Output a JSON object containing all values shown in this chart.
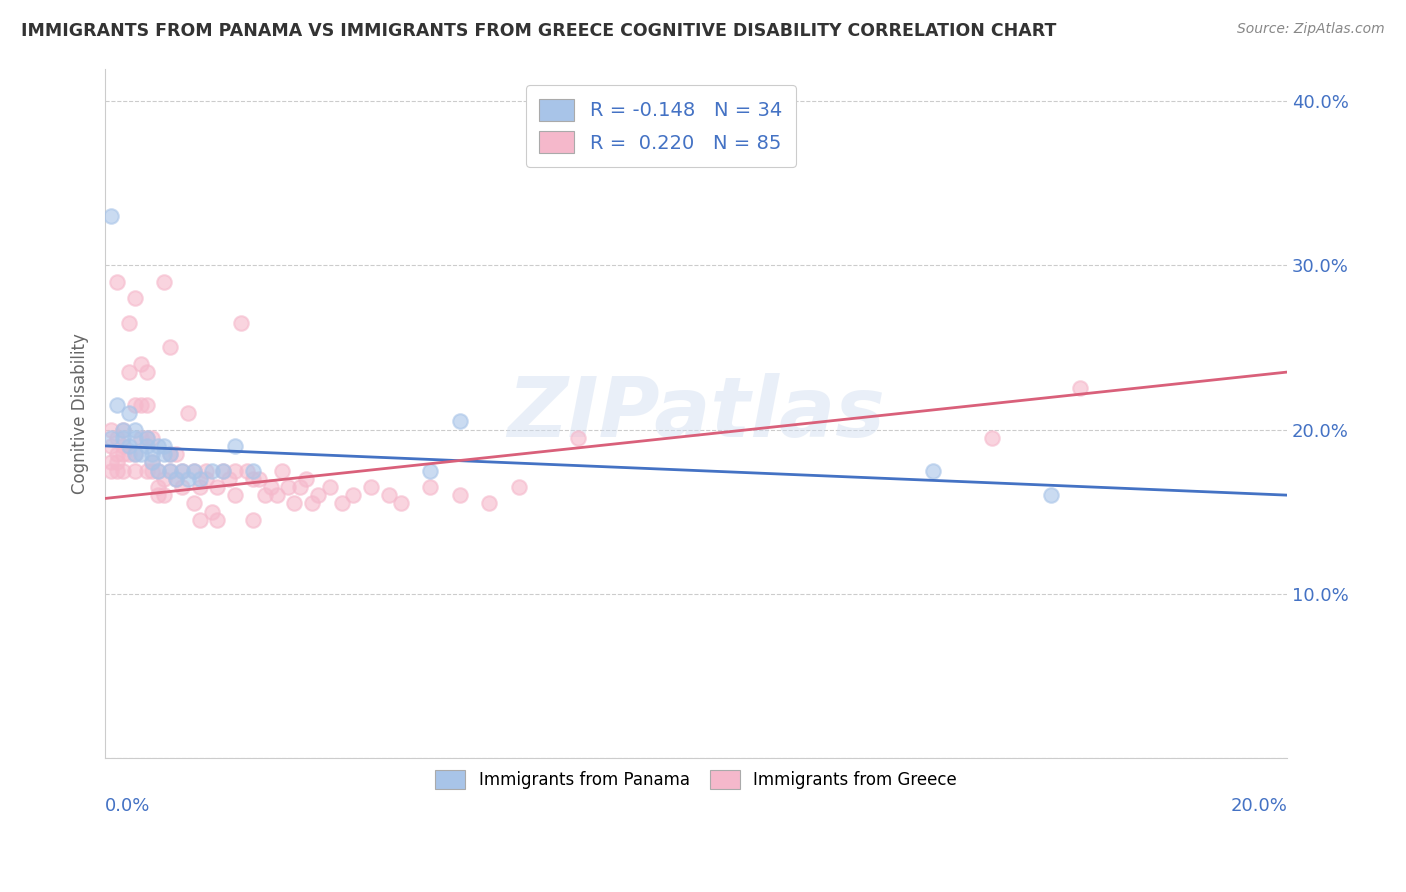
{
  "title": "IMMIGRANTS FROM PANAMA VS IMMIGRANTS FROM GREECE COGNITIVE DISABILITY CORRELATION CHART",
  "source": "Source: ZipAtlas.com",
  "ylabel": "Cognitive Disability",
  "yticks": [
    0.0,
    0.1,
    0.2,
    0.3,
    0.4
  ],
  "ytick_labels": [
    "",
    "10.0%",
    "20.0%",
    "30.0%",
    "40.0%"
  ],
  "xlim": [
    0.0,
    0.2
  ],
  "ylim": [
    0.0,
    0.42
  ],
  "watermark": "ZIPatlas",
  "legend_blue_r": "R = -0.148",
  "legend_blue_n": "N = 34",
  "legend_pink_r": "R =  0.220",
  "legend_pink_n": "N = 85",
  "blue_color": "#a8c4e8",
  "pink_color": "#f5b8cb",
  "blue_line_color": "#4472c4",
  "pink_line_color": "#d9607a",
  "panama_x": [
    0.001,
    0.001,
    0.002,
    0.003,
    0.003,
    0.004,
    0.004,
    0.005,
    0.005,
    0.005,
    0.006,
    0.007,
    0.007,
    0.008,
    0.008,
    0.009,
    0.009,
    0.01,
    0.01,
    0.011,
    0.011,
    0.012,
    0.013,
    0.014,
    0.015,
    0.016,
    0.018,
    0.02,
    0.022,
    0.025,
    0.055,
    0.06,
    0.14,
    0.16
  ],
  "panama_y": [
    0.33,
    0.195,
    0.215,
    0.2,
    0.195,
    0.19,
    0.21,
    0.195,
    0.185,
    0.2,
    0.185,
    0.19,
    0.195,
    0.185,
    0.18,
    0.19,
    0.175,
    0.185,
    0.19,
    0.175,
    0.185,
    0.17,
    0.175,
    0.17,
    0.175,
    0.17,
    0.175,
    0.175,
    0.19,
    0.175,
    0.175,
    0.205,
    0.175,
    0.16
  ],
  "greece_x": [
    0.001,
    0.001,
    0.001,
    0.001,
    0.002,
    0.002,
    0.002,
    0.002,
    0.002,
    0.003,
    0.003,
    0.003,
    0.003,
    0.004,
    0.004,
    0.004,
    0.005,
    0.005,
    0.005,
    0.005,
    0.006,
    0.006,
    0.006,
    0.007,
    0.007,
    0.007,
    0.007,
    0.008,
    0.008,
    0.008,
    0.009,
    0.009,
    0.009,
    0.01,
    0.01,
    0.01,
    0.011,
    0.011,
    0.011,
    0.012,
    0.012,
    0.013,
    0.013,
    0.014,
    0.015,
    0.015,
    0.016,
    0.016,
    0.017,
    0.017,
    0.018,
    0.019,
    0.019,
    0.02,
    0.021,
    0.022,
    0.022,
    0.023,
    0.024,
    0.025,
    0.025,
    0.026,
    0.027,
    0.028,
    0.029,
    0.03,
    0.031,
    0.032,
    0.033,
    0.034,
    0.035,
    0.036,
    0.038,
    0.04,
    0.042,
    0.045,
    0.048,
    0.05,
    0.055,
    0.06,
    0.065,
    0.07,
    0.08,
    0.15,
    0.165
  ],
  "greece_y": [
    0.2,
    0.19,
    0.18,
    0.175,
    0.29,
    0.185,
    0.18,
    0.195,
    0.175,
    0.2,
    0.185,
    0.19,
    0.175,
    0.265,
    0.235,
    0.185,
    0.28,
    0.215,
    0.185,
    0.175,
    0.24,
    0.215,
    0.195,
    0.235,
    0.215,
    0.195,
    0.175,
    0.195,
    0.18,
    0.175,
    0.175,
    0.165,
    0.16,
    0.29,
    0.17,
    0.16,
    0.25,
    0.185,
    0.175,
    0.185,
    0.17,
    0.175,
    0.165,
    0.21,
    0.175,
    0.155,
    0.165,
    0.145,
    0.175,
    0.17,
    0.15,
    0.165,
    0.145,
    0.175,
    0.17,
    0.175,
    0.16,
    0.265,
    0.175,
    0.17,
    0.145,
    0.17,
    0.16,
    0.165,
    0.16,
    0.175,
    0.165,
    0.155,
    0.165,
    0.17,
    0.155,
    0.16,
    0.165,
    0.155,
    0.16,
    0.165,
    0.16,
    0.155,
    0.165,
    0.16,
    0.155,
    0.165,
    0.195,
    0.195,
    0.225
  ],
  "blue_line_x": [
    0.0,
    0.2
  ],
  "blue_line_y": [
    0.19,
    0.16
  ],
  "pink_line_x": [
    0.0,
    0.2
  ],
  "pink_line_y": [
    0.158,
    0.235
  ]
}
